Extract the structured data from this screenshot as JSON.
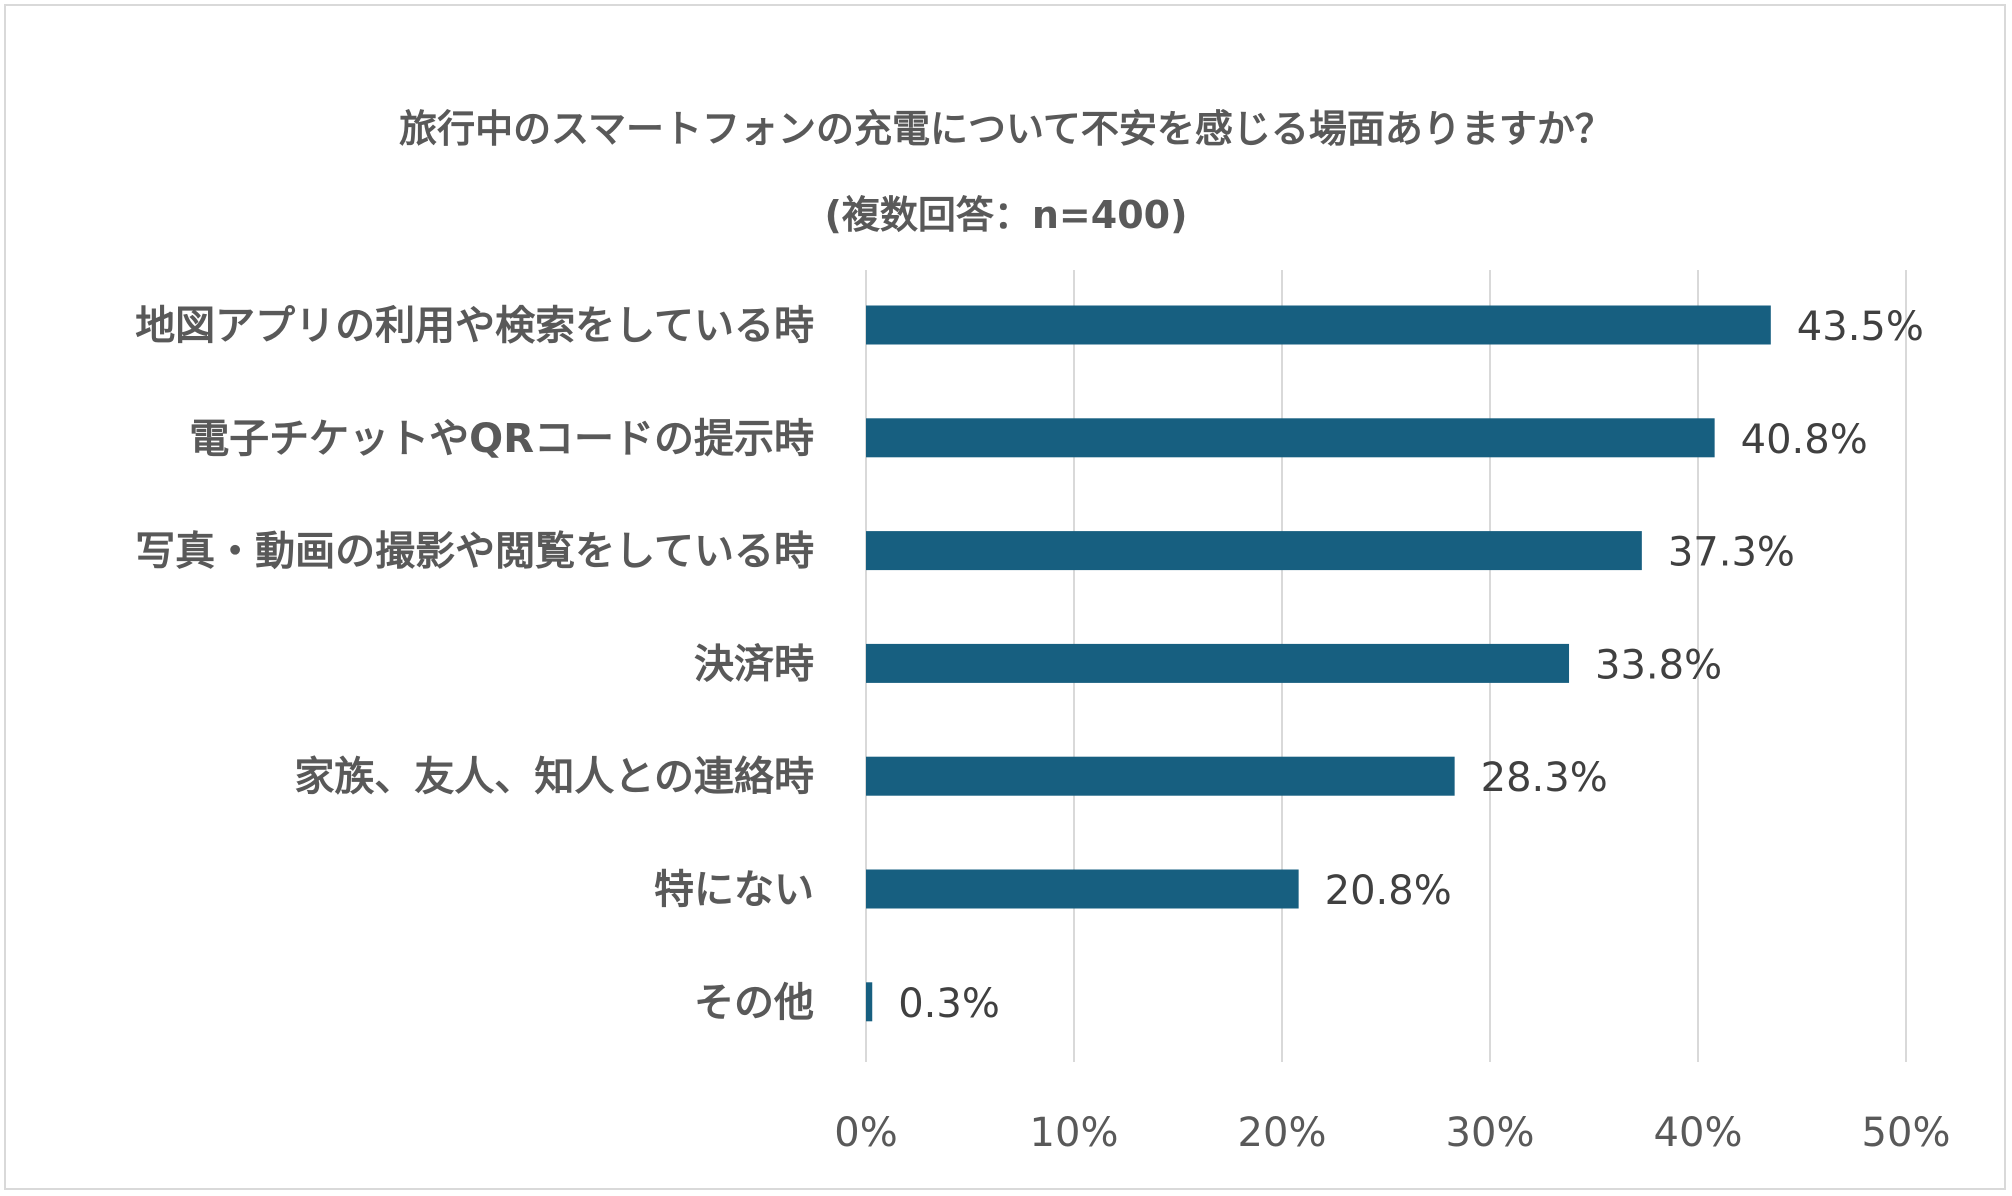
{
  "chart_data": {
    "type": "bar",
    "orientation": "horizontal",
    "title": "旅行中のスマートフォンの充電について不安を感じる場面ありますか？",
    "subtitle": "(複数回答：n=400)",
    "categories": [
      "地図アプリの利用や検索をしている時",
      "電子チケットやQRコードの提示時",
      "写真・動画の撮影や閲覧をしている時",
      "決済時",
      "家族、友人、知人との連絡時",
      "特にない",
      "その他"
    ],
    "values": [
      43.5,
      40.8,
      37.3,
      33.8,
      28.3,
      20.8,
      0.3
    ],
    "value_labels": [
      "43.5%",
      "40.8%",
      "37.3%",
      "33.8%",
      "28.3%",
      "20.8%",
      "0.3%"
    ],
    "xlim": [
      0,
      50
    ],
    "x_ticks": [
      0,
      10,
      20,
      30,
      40,
      50
    ],
    "x_tick_labels": [
      "0%",
      "10%",
      "20%",
      "30%",
      "40%",
      "50%"
    ],
    "grid": "vertical",
    "bar_color": "#175f80",
    "grid_color": "#d9d9d9"
  }
}
